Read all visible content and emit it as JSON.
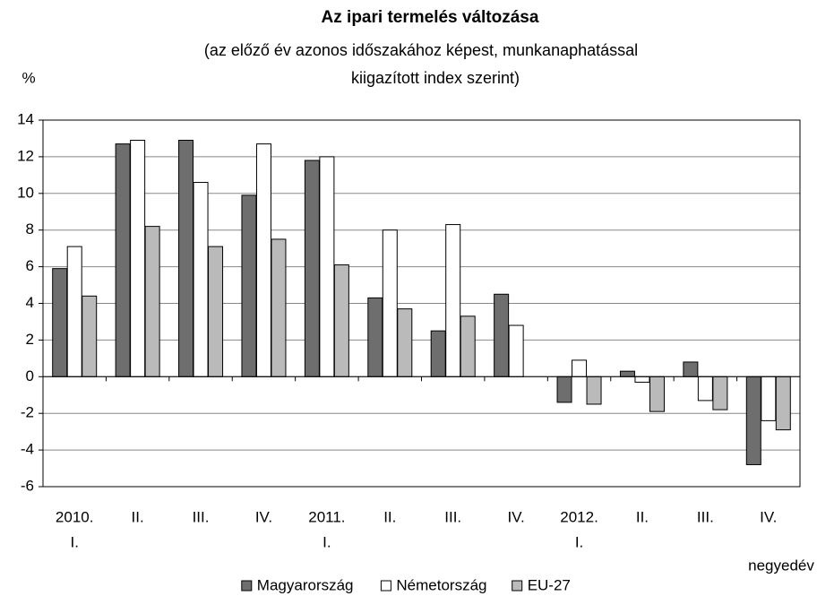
{
  "chart_data": {
    "type": "bar",
    "title": "Az ipari termelés változása",
    "subtitle": [
      "(az előző év azonos időszakához képest, munkanaphatással",
      "kiigazított index szerint)"
    ],
    "y_label": "%",
    "x_label": "negyedév",
    "categories": [
      [
        "2010.",
        "I."
      ],
      [
        "II."
      ],
      [
        "III."
      ],
      [
        "IV."
      ],
      [
        "2011.",
        "I."
      ],
      [
        "II."
      ],
      [
        "III."
      ],
      [
        "IV."
      ],
      [
        "2012.",
        "I."
      ],
      [
        "II."
      ],
      [
        "III."
      ],
      [
        "IV."
      ]
    ],
    "series": [
      {
        "name": "Magyarország",
        "color": "#6e6e6e",
        "values": [
          5.9,
          12.7,
          12.9,
          9.9,
          11.8,
          4.3,
          2.5,
          4.5,
          -1.4,
          0.3,
          0.8,
          -4.8
        ]
      },
      {
        "name": "Németország",
        "color": "#ffffff",
        "values": [
          7.1,
          12.9,
          10.6,
          12.7,
          12.0,
          8.0,
          8.3,
          2.8,
          0.9,
          -0.3,
          -1.3,
          -2.4
        ]
      },
      {
        "name": "EU-27",
        "color": "#bababa",
        "values": [
          4.4,
          8.2,
          7.1,
          7.5,
          6.1,
          3.7,
          3.3,
          null,
          -1.5,
          -1.9,
          -1.8,
          -2.9
        ]
      }
    ],
    "ylim": [
      -6,
      14
    ],
    "yticks": [
      -6,
      -4,
      -2,
      0,
      2,
      4,
      6,
      8,
      10,
      12,
      14
    ],
    "grid": true,
    "legend": "bottom"
  }
}
